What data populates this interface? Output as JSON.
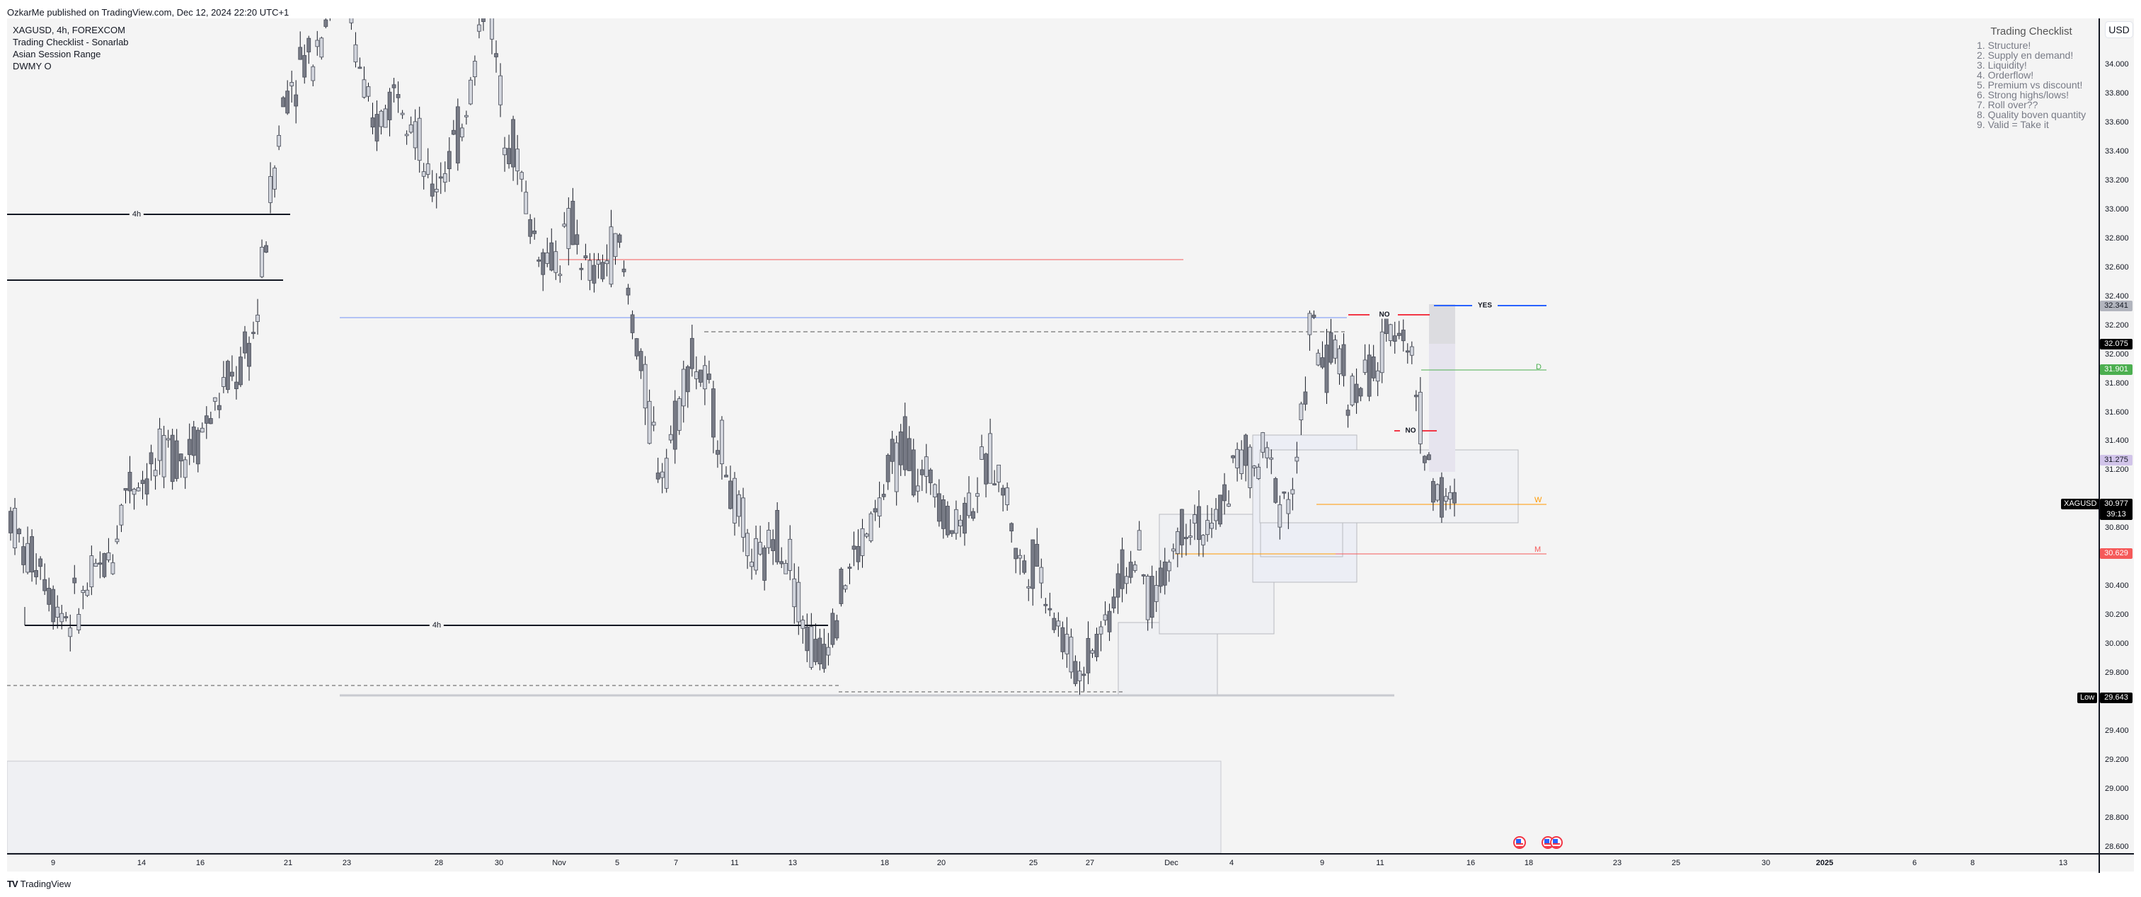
{
  "header": {
    "published": "OzkarMe published on TradingView.com, Dec 12, 2024 22:20 UTC+1"
  },
  "legend": {
    "symbol_line": "XAGUSD, 4h, FOREXCOM",
    "indicators": [
      "Trading Checklist - Sonarlab",
      "Asian Session Range",
      "DWMY O"
    ]
  },
  "checklist": {
    "title": "Trading Checklist",
    "items": [
      "1. Structure!",
      "2. Supply en demand!",
      "3. Liquidity!",
      "4. Orderflow!",
      "5. Premium vs discount!",
      "6. Strong highs/lows!",
      "7. Roll over??",
      "8. Quality boven quantity",
      "9. Valid = Take it"
    ]
  },
  "price_axis": {
    "currency": "USD",
    "ticks": [
      "34.000",
      "33.800",
      "33.600",
      "33.400",
      "33.200",
      "33.000",
      "32.800",
      "32.600",
      "32.400",
      "32.200",
      "32.000",
      "31.800",
      "31.600",
      "31.400",
      "31.200",
      "30.800",
      "30.400",
      "30.200",
      "30.000",
      "29.800",
      "29.400",
      "29.200",
      "29.000",
      "28.800",
      "28.600"
    ],
    "tags": [
      {
        "value": "32.341",
        "bg": "#b2b5be",
        "fg": "#131722"
      },
      {
        "value": "32.075",
        "bg": "#000000",
        "fg": "#ffffff"
      },
      {
        "value": "31.901",
        "bg": "#4caf50",
        "fg": "#ffffff"
      },
      {
        "value": "31.275",
        "bg": "#d1c4e9",
        "fg": "#131722"
      },
      {
        "value": "30.975",
        "bg": "#ff9800",
        "fg": "#131722"
      },
      {
        "value": "30.629",
        "bg": "#f55a5a",
        "fg": "#ffffff"
      }
    ],
    "last_price": {
      "symbol": "XAGUSD",
      "value": "30.977",
      "countdown": "39:13"
    },
    "low": {
      "label": "Low",
      "value": "29.643"
    }
  },
  "time_axis": {
    "ticks": [
      {
        "label": "9",
        "x": 75
      },
      {
        "label": "14",
        "x": 200
      },
      {
        "label": "16",
        "x": 283
      },
      {
        "label": "21",
        "x": 407
      },
      {
        "label": "23",
        "x": 490
      },
      {
        "label": "28",
        "x": 620
      },
      {
        "label": "30",
        "x": 705
      },
      {
        "label": "Nov",
        "x": 790
      },
      {
        "label": "5",
        "x": 872
      },
      {
        "label": "7",
        "x": 955
      },
      {
        "label": "11",
        "x": 1038
      },
      {
        "label": "13",
        "x": 1120
      },
      {
        "label": "18",
        "x": 1250
      },
      {
        "label": "20",
        "x": 1330
      },
      {
        "label": "25",
        "x": 1460
      },
      {
        "label": "27",
        "x": 1540
      },
      {
        "label": "Dec",
        "x": 1655
      },
      {
        "label": "4",
        "x": 1740
      },
      {
        "label": "9",
        "x": 1868
      },
      {
        "label": "11",
        "x": 1950
      },
      {
        "label": "16",
        "x": 2078
      },
      {
        "label": "18",
        "x": 2160
      },
      {
        "label": "23",
        "x": 2285
      },
      {
        "label": "25",
        "x": 2368
      },
      {
        "label": "30",
        "x": 2495
      },
      {
        "label": "2025",
        "x": 2578,
        "bold": true
      },
      {
        "label": "6",
        "x": 2705
      },
      {
        "label": "8",
        "x": 2787
      },
      {
        "label": "13",
        "x": 2915
      }
    ]
  },
  "annotations": {
    "yes_label": "YES",
    "no_label": "NO",
    "tf_label": "4h",
    "level_letters": {
      "daily": "D",
      "weekly": "W",
      "monthly": "M"
    }
  },
  "branding": {
    "logo": "TV",
    "name": "TradingView"
  },
  "colors": {
    "background": "#f4f4f4",
    "bull_body": "#d1d4dc",
    "bear_body": "#787b86",
    "candle_border": "#4a4e5a",
    "wick": "#131722",
    "daily_open": "#4caf50",
    "weekly_open": "#ff9800",
    "monthly_open": "#f55a5a",
    "no_line": "#f23645",
    "yes_line": "#2962ff",
    "blue_level": "#b3c3f5"
  },
  "chart_data": {
    "type": "candlestick",
    "title": "XAGUSD, 4h, FOREXCOM",
    "xlabel": "",
    "ylabel": "USD",
    "ylim": [
      28.55,
      34.25
    ],
    "x_range": [
      "Oct 8, 2024",
      "Jan 14, 2025"
    ],
    "grid": false,
    "last_price": 30.977,
    "period_low": 29.643,
    "levels": [
      {
        "name": "Daily open (D)",
        "value": 31.901,
        "color": "#4caf50"
      },
      {
        "name": "Weekly open (W)",
        "value": 30.975,
        "color": "#ff9800"
      },
      {
        "name": "Monthly open (M)",
        "value": 30.629,
        "color": "#f55a5a"
      },
      {
        "name": "Previous high",
        "value": 32.341
      },
      {
        "name": "Asian range",
        "value": 31.275
      },
      {
        "name": "YES level",
        "value": 32.36
      },
      {
        "name": "NO level upper",
        "value": 32.27
      },
      {
        "name": "NO level lower",
        "value": 31.49
      },
      {
        "name": "Red liquidity level",
        "value": 32.66
      },
      {
        "name": "Blue level",
        "value": 32.25
      }
    ],
    "swing_points": [
      {
        "date": "Oct 9",
        "price": 30.1
      },
      {
        "date": "Oct 22",
        "price": 34.9
      },
      {
        "date": "Oct 30",
        "price": 34.8
      },
      {
        "date": "Nov 7",
        "price": 32.2
      },
      {
        "date": "Nov 14",
        "price": 29.7
      },
      {
        "date": "Nov 19",
        "price": 31.5
      },
      {
        "date": "Nov 28",
        "price": 29.64
      },
      {
        "date": "Dec 9",
        "price": 32.3
      },
      {
        "date": "Dec 12",
        "price": 32.34
      },
      {
        "date": "Dec 12",
        "price": 30.98
      }
    ],
    "ohlc_path": [
      [
        31.0,
        31.1,
        30.8,
        30.9
      ],
      [
        30.9,
        31.1,
        30.5,
        30.6
      ],
      [
        30.6,
        30.7,
        30.4,
        30.6
      ],
      [
        30.6,
        30.7,
        30.3,
        30.3
      ],
      [
        30.3,
        30.5,
        30.1,
        30.2
      ],
      [
        30.2,
        30.4,
        30.1,
        30.3
      ],
      [
        30.3,
        30.6,
        30.2,
        30.5
      ],
      [
        30.5,
        30.7,
        30.4,
        30.6
      ],
      [
        30.6,
        31.2,
        30.5,
        31.1
      ],
      [
        31.1,
        31.2,
        31.0,
        31.15
      ],
      [
        31.15,
        31.3,
        31.0,
        31.2
      ],
      [
        31.2,
        31.4,
        31.1,
        31.35
      ],
      [
        31.35,
        31.5,
        31.2,
        31.3
      ],
      [
        31.3,
        31.5,
        31.2,
        31.45
      ],
      [
        31.45,
        31.7,
        31.3,
        31.6
      ],
      [
        31.6,
        31.9,
        31.5,
        31.8
      ],
      [
        31.8,
        32.0,
        31.7,
        31.9
      ],
      [
        31.9,
        32.3,
        31.8,
        32.2
      ],
      [
        32.2,
        33.2,
        32.1,
        33.1
      ],
      [
        33.1,
        33.9,
        33.0,
        33.8
      ],
      [
        33.8,
        34.2,
        33.6,
        34.0
      ],
      [
        34.0,
        34.4,
        33.8,
        34.1
      ],
      [
        34.1,
        34.6,
        33.9,
        34.4
      ],
      [
        34.4,
        34.9,
        34.2,
        34.6
      ],
      [
        34.6,
        34.8,
        33.9,
        34.1
      ],
      [
        34.1,
        34.3,
        33.4,
        33.5
      ],
      [
        33.5,
        33.8,
        33.2,
        33.7
      ],
      [
        33.7,
        34.0,
        33.6,
        33.9
      ],
      [
        33.9,
        34.2,
        33.5,
        33.6
      ],
      [
        33.6,
        33.7,
        32.9,
        33.1
      ],
      [
        33.1,
        33.4,
        32.9,
        33.3
      ],
      [
        33.3,
        33.6,
        33.1,
        33.5
      ],
      [
        33.5,
        34.0,
        33.4,
        33.9
      ],
      [
        33.9,
        34.8,
        33.8,
        34.6
      ],
      [
        34.6,
        34.7,
        33.6,
        33.7
      ],
      [
        33.7,
        33.9,
        33.2,
        33.4
      ],
      [
        33.4,
        33.5,
        32.8,
        32.9
      ],
      [
        32.9,
        33.0,
        32.6,
        32.65
      ],
      [
        32.65,
        32.8,
        32.5,
        32.7
      ],
      [
        32.7,
        33.0,
        32.6,
        32.9
      ],
      [
        32.9,
        33.1,
        32.4,
        32.5
      ],
      [
        32.5,
        32.7,
        32.3,
        32.6
      ],
      [
        32.6,
        32.9,
        32.5,
        32.8
      ],
      [
        32.8,
        32.9,
        32.2,
        32.3
      ],
      [
        32.3,
        32.4,
        31.6,
        31.7
      ],
      [
        31.7,
        31.9,
        31.1,
        31.2
      ],
      [
        31.2,
        31.6,
        31.1,
        31.5
      ],
      [
        31.5,
        32.2,
        31.4,
        32.0
      ],
      [
        32.0,
        32.1,
        31.7,
        31.8
      ],
      [
        31.8,
        31.9,
        31.4,
        31.5
      ],
      [
        31.5,
        31.6,
        30.9,
        31.0
      ],
      [
        31.0,
        31.1,
        30.6,
        30.7
      ],
      [
        30.7,
        30.8,
        30.4,
        30.5
      ],
      [
        30.5,
        30.9,
        30.4,
        30.8
      ],
      [
        30.8,
        31.0,
        30.5,
        30.6
      ],
      [
        30.6,
        30.7,
        30.0,
        30.1
      ],
      [
        30.1,
        30.2,
        29.7,
        29.9
      ],
      [
        29.9,
        30.3,
        29.8,
        30.2
      ],
      [
        30.2,
        30.6,
        30.1,
        30.5
      ],
      [
        30.5,
        30.8,
        30.4,
        30.7
      ],
      [
        30.7,
        31.0,
        30.6,
        30.9
      ],
      [
        30.9,
        31.3,
        30.8,
        31.2
      ],
      [
        31.2,
        31.5,
        31.1,
        31.4
      ],
      [
        31.4,
        31.5,
        31.0,
        31.1
      ],
      [
        31.1,
        31.3,
        30.9,
        31.2
      ],
      [
        31.2,
        31.3,
        30.7,
        30.8
      ],
      [
        30.8,
        31.0,
        30.6,
        30.9
      ],
      [
        30.9,
        31.2,
        30.8,
        31.1
      ],
      [
        31.1,
        31.4,
        31.0,
        31.3
      ],
      [
        31.3,
        31.5,
        30.9,
        31.0
      ],
      [
        31.0,
        31.1,
        30.4,
        30.5
      ],
      [
        30.5,
        30.7,
        30.3,
        30.6
      ],
      [
        30.6,
        30.7,
        30.2,
        30.3
      ],
      [
        30.3,
        30.4,
        29.9,
        30.0
      ],
      [
        30.0,
        30.2,
        29.64,
        29.8
      ],
      [
        29.8,
        30.1,
        29.7,
        30.0
      ],
      [
        30.0,
        30.3,
        29.9,
        30.2
      ],
      [
        30.2,
        30.6,
        30.1,
        30.5
      ],
      [
        30.5,
        30.7,
        30.4,
        30.6
      ],
      [
        30.6,
        30.7,
        30.2,
        30.3
      ],
      [
        30.3,
        30.6,
        30.2,
        30.5
      ],
      [
        30.5,
        30.9,
        30.4,
        30.8
      ],
      [
        30.8,
        31.0,
        30.7,
        30.9
      ],
      [
        30.9,
        31.0,
        30.6,
        30.7
      ],
      [
        30.7,
        31.1,
        30.6,
        31.0
      ],
      [
        31.0,
        31.4,
        30.9,
        31.3
      ],
      [
        31.3,
        31.5,
        31.1,
        31.2
      ],
      [
        31.2,
        31.4,
        31.0,
        31.3
      ],
      [
        31.3,
        31.4,
        30.9,
        31.0
      ],
      [
        31.0,
        31.2,
        30.9,
        31.1
      ],
      [
        31.1,
        32.3,
        31.0,
        32.2
      ],
      [
        32.2,
        32.3,
        31.8,
        31.9
      ],
      [
        31.9,
        32.1,
        31.7,
        32.0
      ],
      [
        32.0,
        32.1,
        31.6,
        31.7
      ],
      [
        31.7,
        31.9,
        31.5,
        31.85
      ],
      [
        31.85,
        32.0,
        31.8,
        31.95
      ],
      [
        31.95,
        32.34,
        31.9,
        32.3
      ],
      [
        32.3,
        32.34,
        31.9,
        32.0
      ],
      [
        32.0,
        32.05,
        31.2,
        31.3
      ],
      [
        31.3,
        31.35,
        30.9,
        31.0
      ],
      [
        31.0,
        31.05,
        30.92,
        30.977
      ]
    ]
  }
}
